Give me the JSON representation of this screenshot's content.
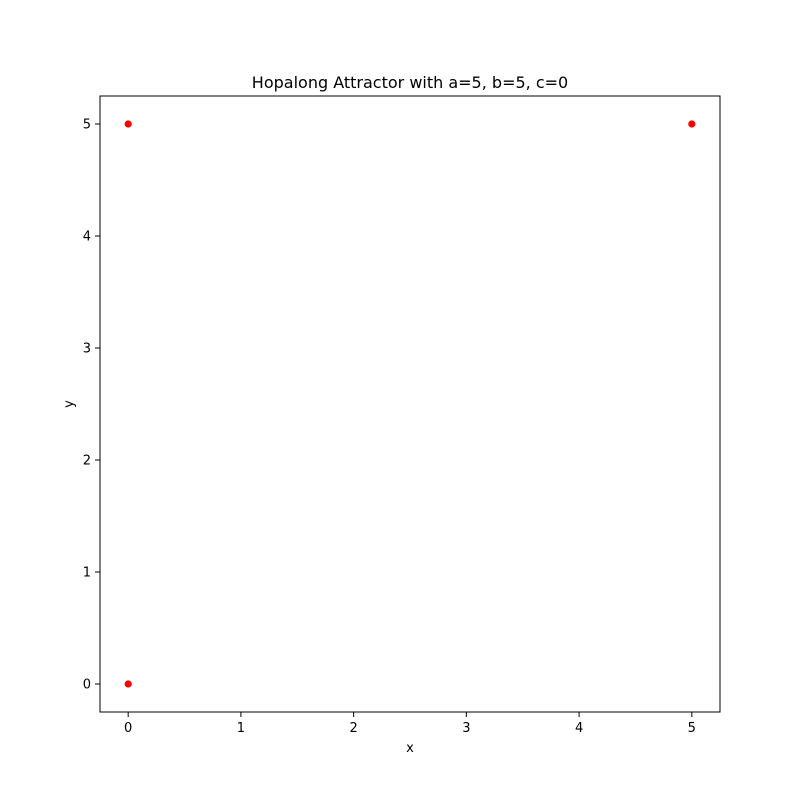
{
  "chart_data": {
    "type": "scatter",
    "title": "Hopalong Attractor with a=5, b=5, c=0",
    "xlabel": "x",
    "ylabel": "y",
    "xlim": [
      -0.25,
      5.25
    ],
    "ylim": [
      -0.25,
      5.25
    ],
    "xticks": [
      0,
      1,
      2,
      3,
      4,
      5
    ],
    "yticks": [
      0,
      1,
      2,
      3,
      4,
      5
    ],
    "xtick_labels": [
      "0",
      "1",
      "2",
      "3",
      "4",
      "5"
    ],
    "ytick_labels": [
      "0",
      "1",
      "2",
      "3",
      "4",
      "5"
    ],
    "grid": false,
    "series": [
      {
        "color": "#ff0000",
        "points": [
          {
            "x": 0,
            "y": 0
          },
          {
            "x": 0,
            "y": 5
          },
          {
            "x": 5,
            "y": 5
          }
        ]
      }
    ]
  }
}
